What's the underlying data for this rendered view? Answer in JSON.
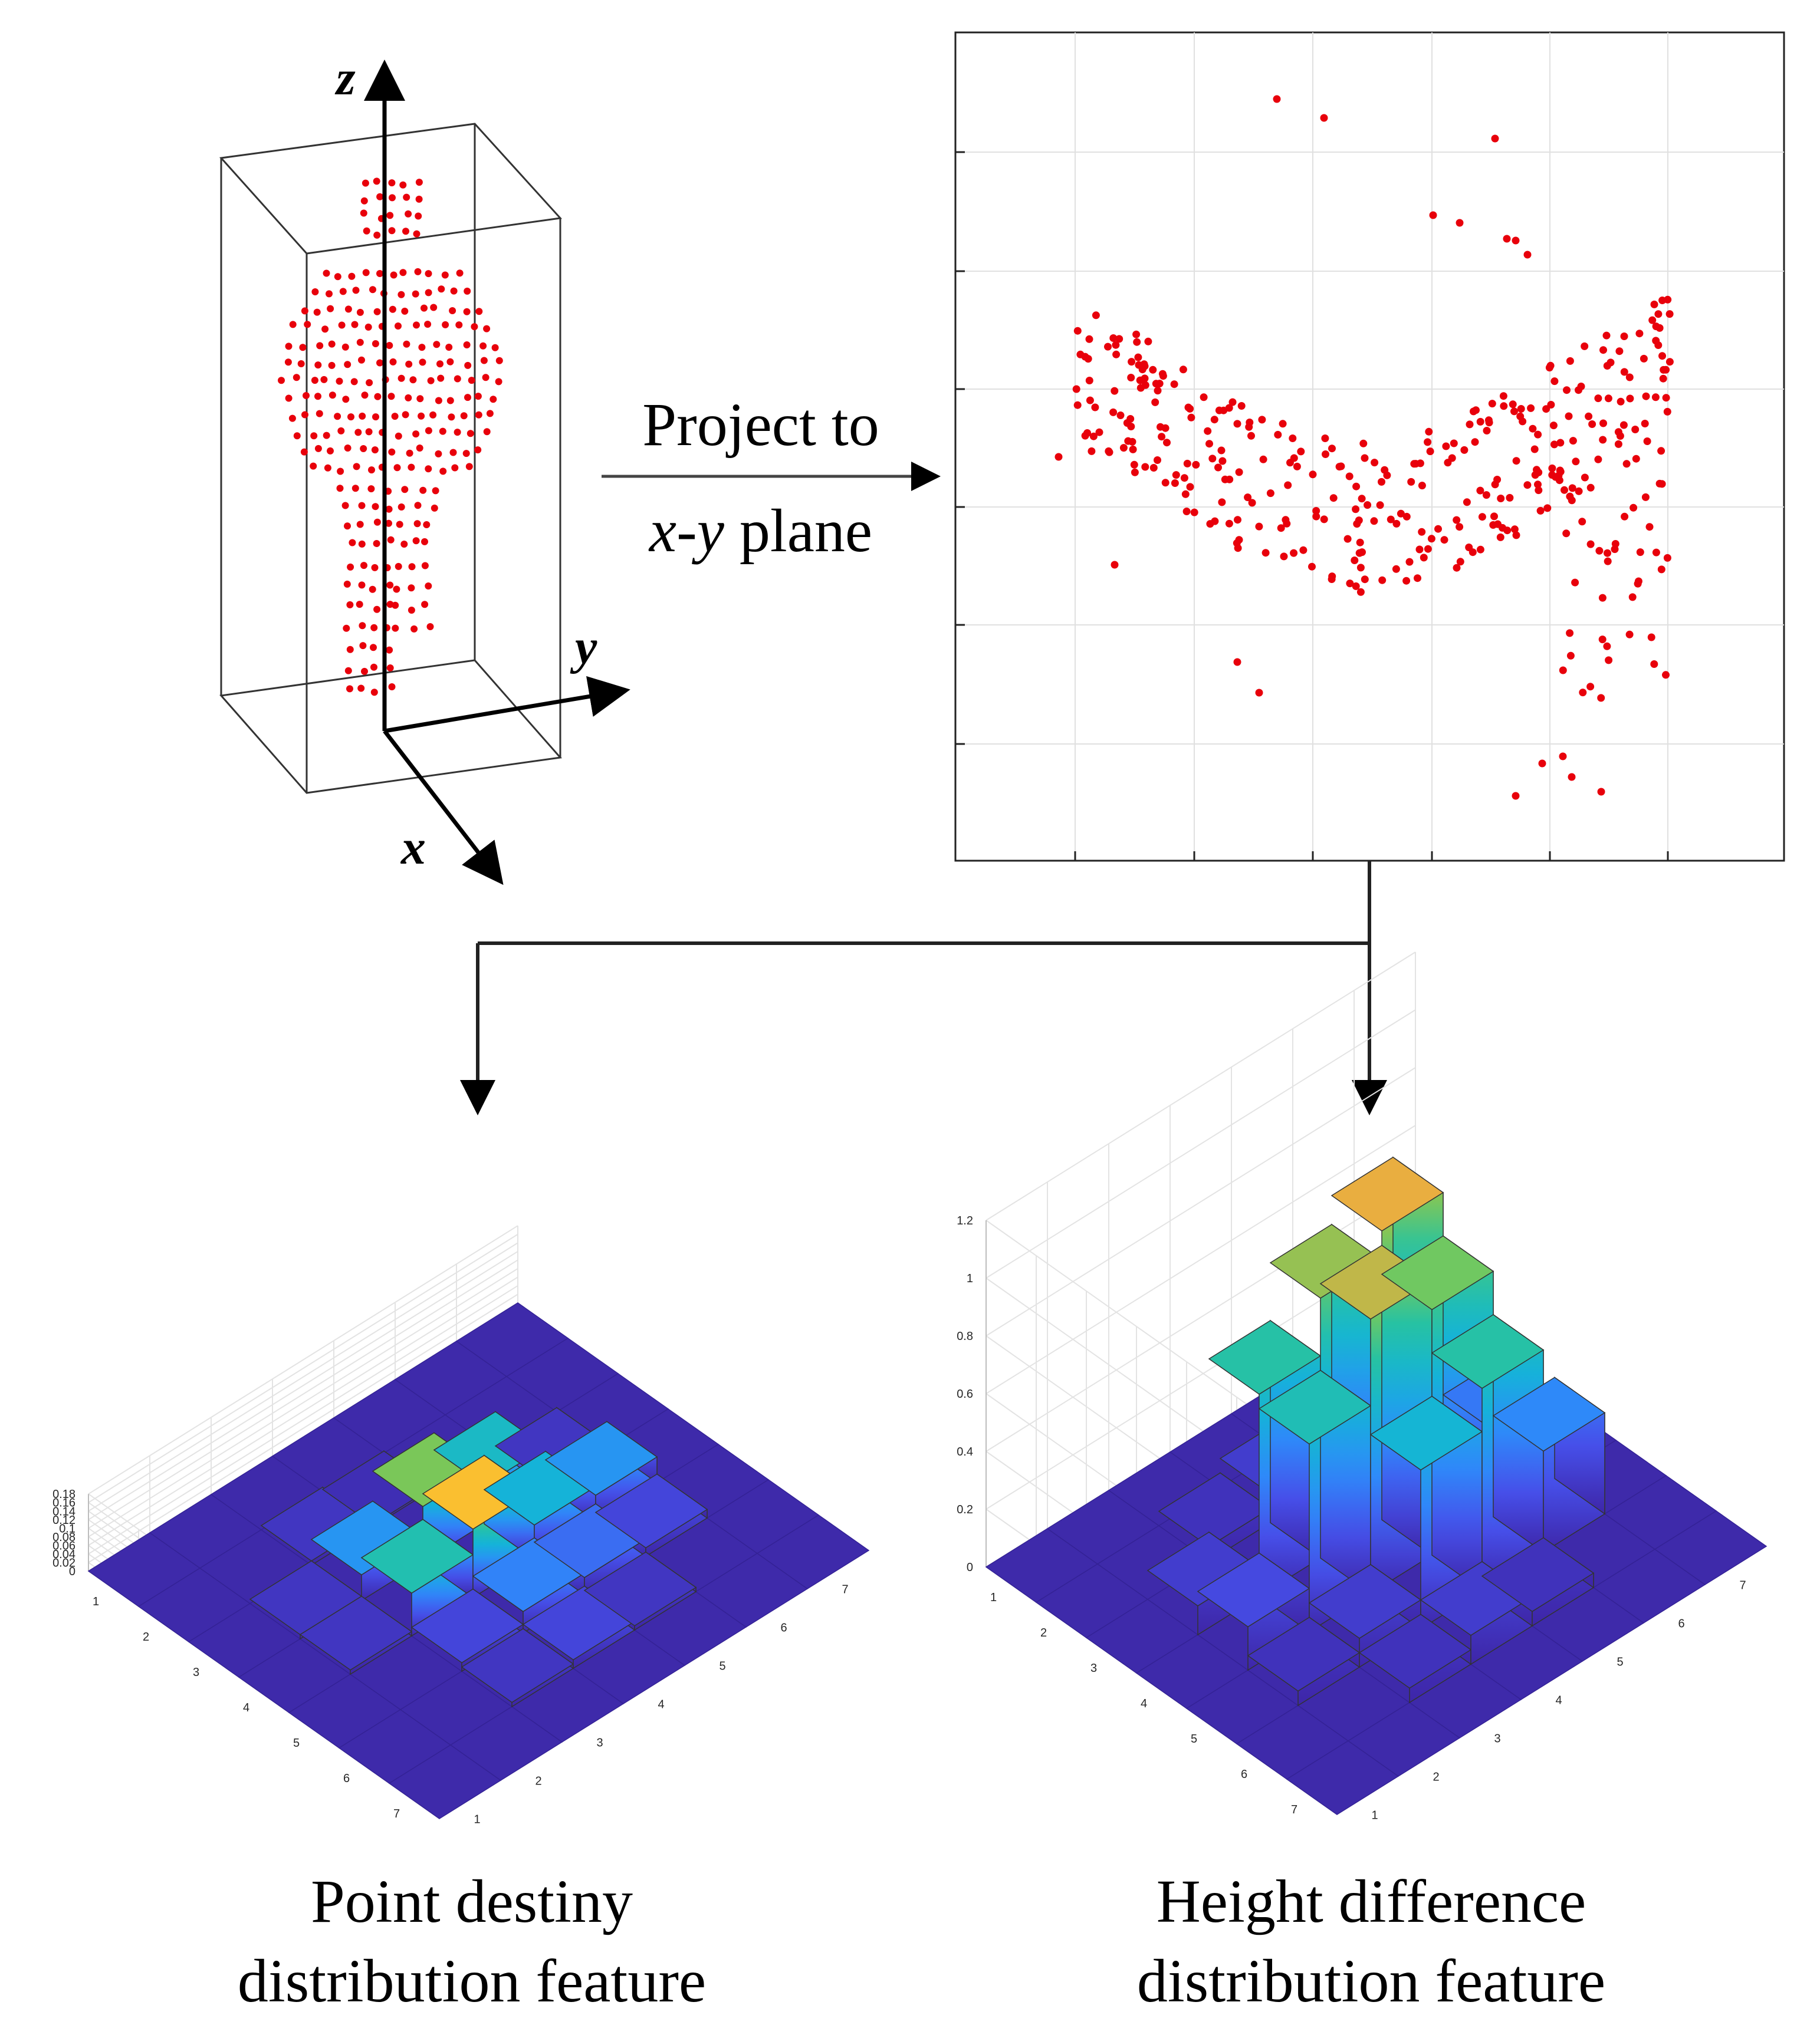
{
  "axes": {
    "x": "x",
    "y": "y",
    "z": "z"
  },
  "projection_label": {
    "line1": "Project to",
    "line2_italic": "x-y",
    "line2_rest": " plane"
  },
  "captions": {
    "left_line1": "Point destiny",
    "left_line2": "distribution feature",
    "right_line1": "Height difference",
    "right_line2": "distribution feature"
  },
  "colors": {
    "points": "#e8000b",
    "arrow": "#000000",
    "low": "#3e26a8",
    "high": "#f9fb0e"
  },
  "chart_data": [
    {
      "type": "bar3d",
      "title": "Point destiny distribution feature",
      "zticks": [
        "0",
        "0.02",
        "0.04",
        "0.06",
        "0.08",
        "0.1",
        "0.12",
        "0.14",
        "0.16",
        "0.18"
      ],
      "xticks": [
        "1",
        "2",
        "3",
        "4",
        "5",
        "6",
        "7"
      ],
      "yticks": [
        "1",
        "2",
        "3",
        "4",
        "5",
        "6",
        "7"
      ],
      "zlim": [
        0,
        0.18
      ],
      "values": [
        [
          0,
          0,
          0,
          0,
          0,
          0,
          0
        ],
        [
          0,
          0,
          0.01,
          0.005,
          0,
          0,
          0
        ],
        [
          0,
          0.01,
          0.06,
          0.13,
          0.09,
          0.01,
          0
        ],
        [
          0,
          0.01,
          0.1,
          0.16,
          0.08,
          0.06,
          0
        ],
        [
          0,
          0,
          0.02,
          0.05,
          0.04,
          0.02,
          0
        ],
        [
          0,
          0,
          0.01,
          0.02,
          0.01,
          0,
          0
        ],
        [
          0,
          0,
          0,
          0,
          0,
          0,
          0
        ]
      ]
    },
    {
      "type": "bar3d",
      "title": "Height difference distribution feature",
      "zticks": [
        "0",
        "0.2",
        "0.4",
        "0.6",
        "0.8",
        "1",
        "1.2"
      ],
      "xticks": [
        "1",
        "2",
        "3",
        "4",
        "5",
        "6",
        "7"
      ],
      "yticks": [
        "1",
        "2",
        "3",
        "4",
        "5",
        "6",
        "7"
      ],
      "zlim": [
        0,
        1.2
      ],
      "values": [
        [
          0,
          0,
          0,
          0,
          0,
          0,
          0
        ],
        [
          0,
          0,
          0.05,
          0.1,
          0,
          0,
          0
        ],
        [
          0,
          0.1,
          0.7,
          0.9,
          1.0,
          0.05,
          0
        ],
        [
          0,
          0.15,
          0.65,
          0.95,
          0.85,
          0.3,
          0
        ],
        [
          0,
          0.05,
          0.1,
          0.55,
          0.7,
          0.35,
          0
        ],
        [
          0,
          0,
          0.05,
          0.1,
          0.05,
          0,
          0
        ],
        [
          0,
          0,
          0,
          0,
          0,
          0,
          0
        ]
      ]
    }
  ]
}
